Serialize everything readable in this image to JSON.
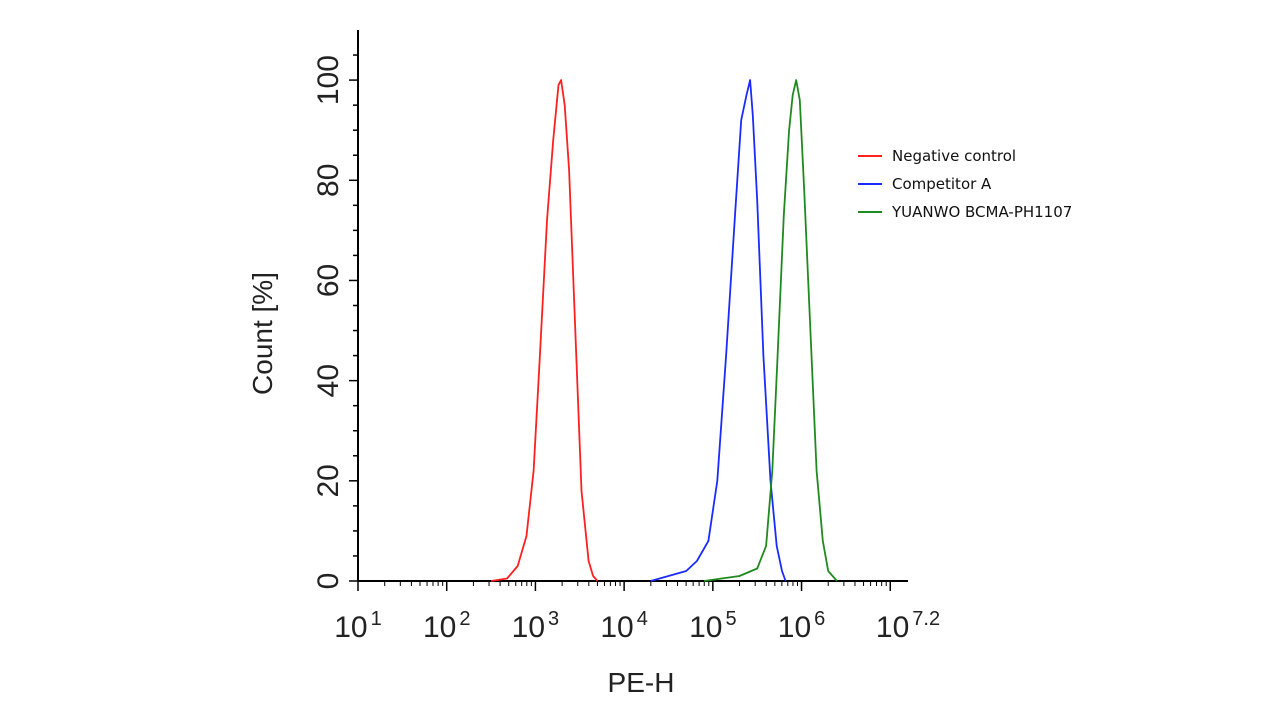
{
  "chart_data": {
    "type": "line",
    "xlabel": "PE-H",
    "ylabel": "Count [%]",
    "x_scale": "log10",
    "xlim": [
      1,
      7.2
    ],
    "ylim": [
      0,
      110
    ],
    "x_ticks": [
      {
        "base": "10",
        "exp": "1"
      },
      {
        "base": "10",
        "exp": "2"
      },
      {
        "base": "10",
        "exp": "3"
      },
      {
        "base": "10",
        "exp": "4"
      },
      {
        "base": "10",
        "exp": "5"
      },
      {
        "base": "10",
        "exp": "6"
      },
      {
        "base": "10",
        "exp": "7.2"
      }
    ],
    "y_ticks": [
      "0",
      "20",
      "40",
      "60",
      "80",
      "100"
    ],
    "legend_position": "right",
    "series": [
      {
        "name": "Negative control",
        "color": "#ff2020",
        "points": [
          [
            2.5,
            0
          ],
          [
            2.68,
            0.5
          ],
          [
            2.8,
            3
          ],
          [
            2.9,
            9
          ],
          [
            2.98,
            22
          ],
          [
            3.05,
            45
          ],
          [
            3.13,
            72
          ],
          [
            3.2,
            88
          ],
          [
            3.26,
            99
          ],
          [
            3.29,
            100
          ],
          [
            3.33,
            95
          ],
          [
            3.38,
            82
          ],
          [
            3.45,
            50
          ],
          [
            3.52,
            18
          ],
          [
            3.6,
            4
          ],
          [
            3.65,
            1
          ],
          [
            3.7,
            0
          ]
        ]
      },
      {
        "name": "Competitor A",
        "color": "#1a2bff",
        "points": [
          [
            4.3,
            0
          ],
          [
            4.5,
            1
          ],
          [
            4.7,
            2
          ],
          [
            4.82,
            4
          ],
          [
            4.95,
            8
          ],
          [
            5.05,
            20
          ],
          [
            5.15,
            45
          ],
          [
            5.25,
            73
          ],
          [
            5.32,
            92
          ],
          [
            5.38,
            97
          ],
          [
            5.42,
            100
          ],
          [
            5.45,
            93
          ],
          [
            5.5,
            76
          ],
          [
            5.57,
            45
          ],
          [
            5.65,
            20
          ],
          [
            5.72,
            7
          ],
          [
            5.78,
            2
          ],
          [
            5.82,
            0
          ]
        ]
      },
      {
        "name": "YUANWO BCMA-PH1107",
        "color": "#1f8a1f",
        "points": [
          [
            4.9,
            0
          ],
          [
            5.1,
            0.5
          ],
          [
            5.3,
            1
          ],
          [
            5.5,
            2.5
          ],
          [
            5.6,
            7
          ],
          [
            5.67,
            22
          ],
          [
            5.73,
            45
          ],
          [
            5.8,
            73
          ],
          [
            5.86,
            90
          ],
          [
            5.9,
            97
          ],
          [
            5.94,
            100
          ],
          [
            5.98,
            96
          ],
          [
            6.03,
            78
          ],
          [
            6.1,
            50
          ],
          [
            6.17,
            22
          ],
          [
            6.24,
            8
          ],
          [
            6.3,
            2
          ],
          [
            6.4,
            0
          ]
        ]
      }
    ]
  }
}
